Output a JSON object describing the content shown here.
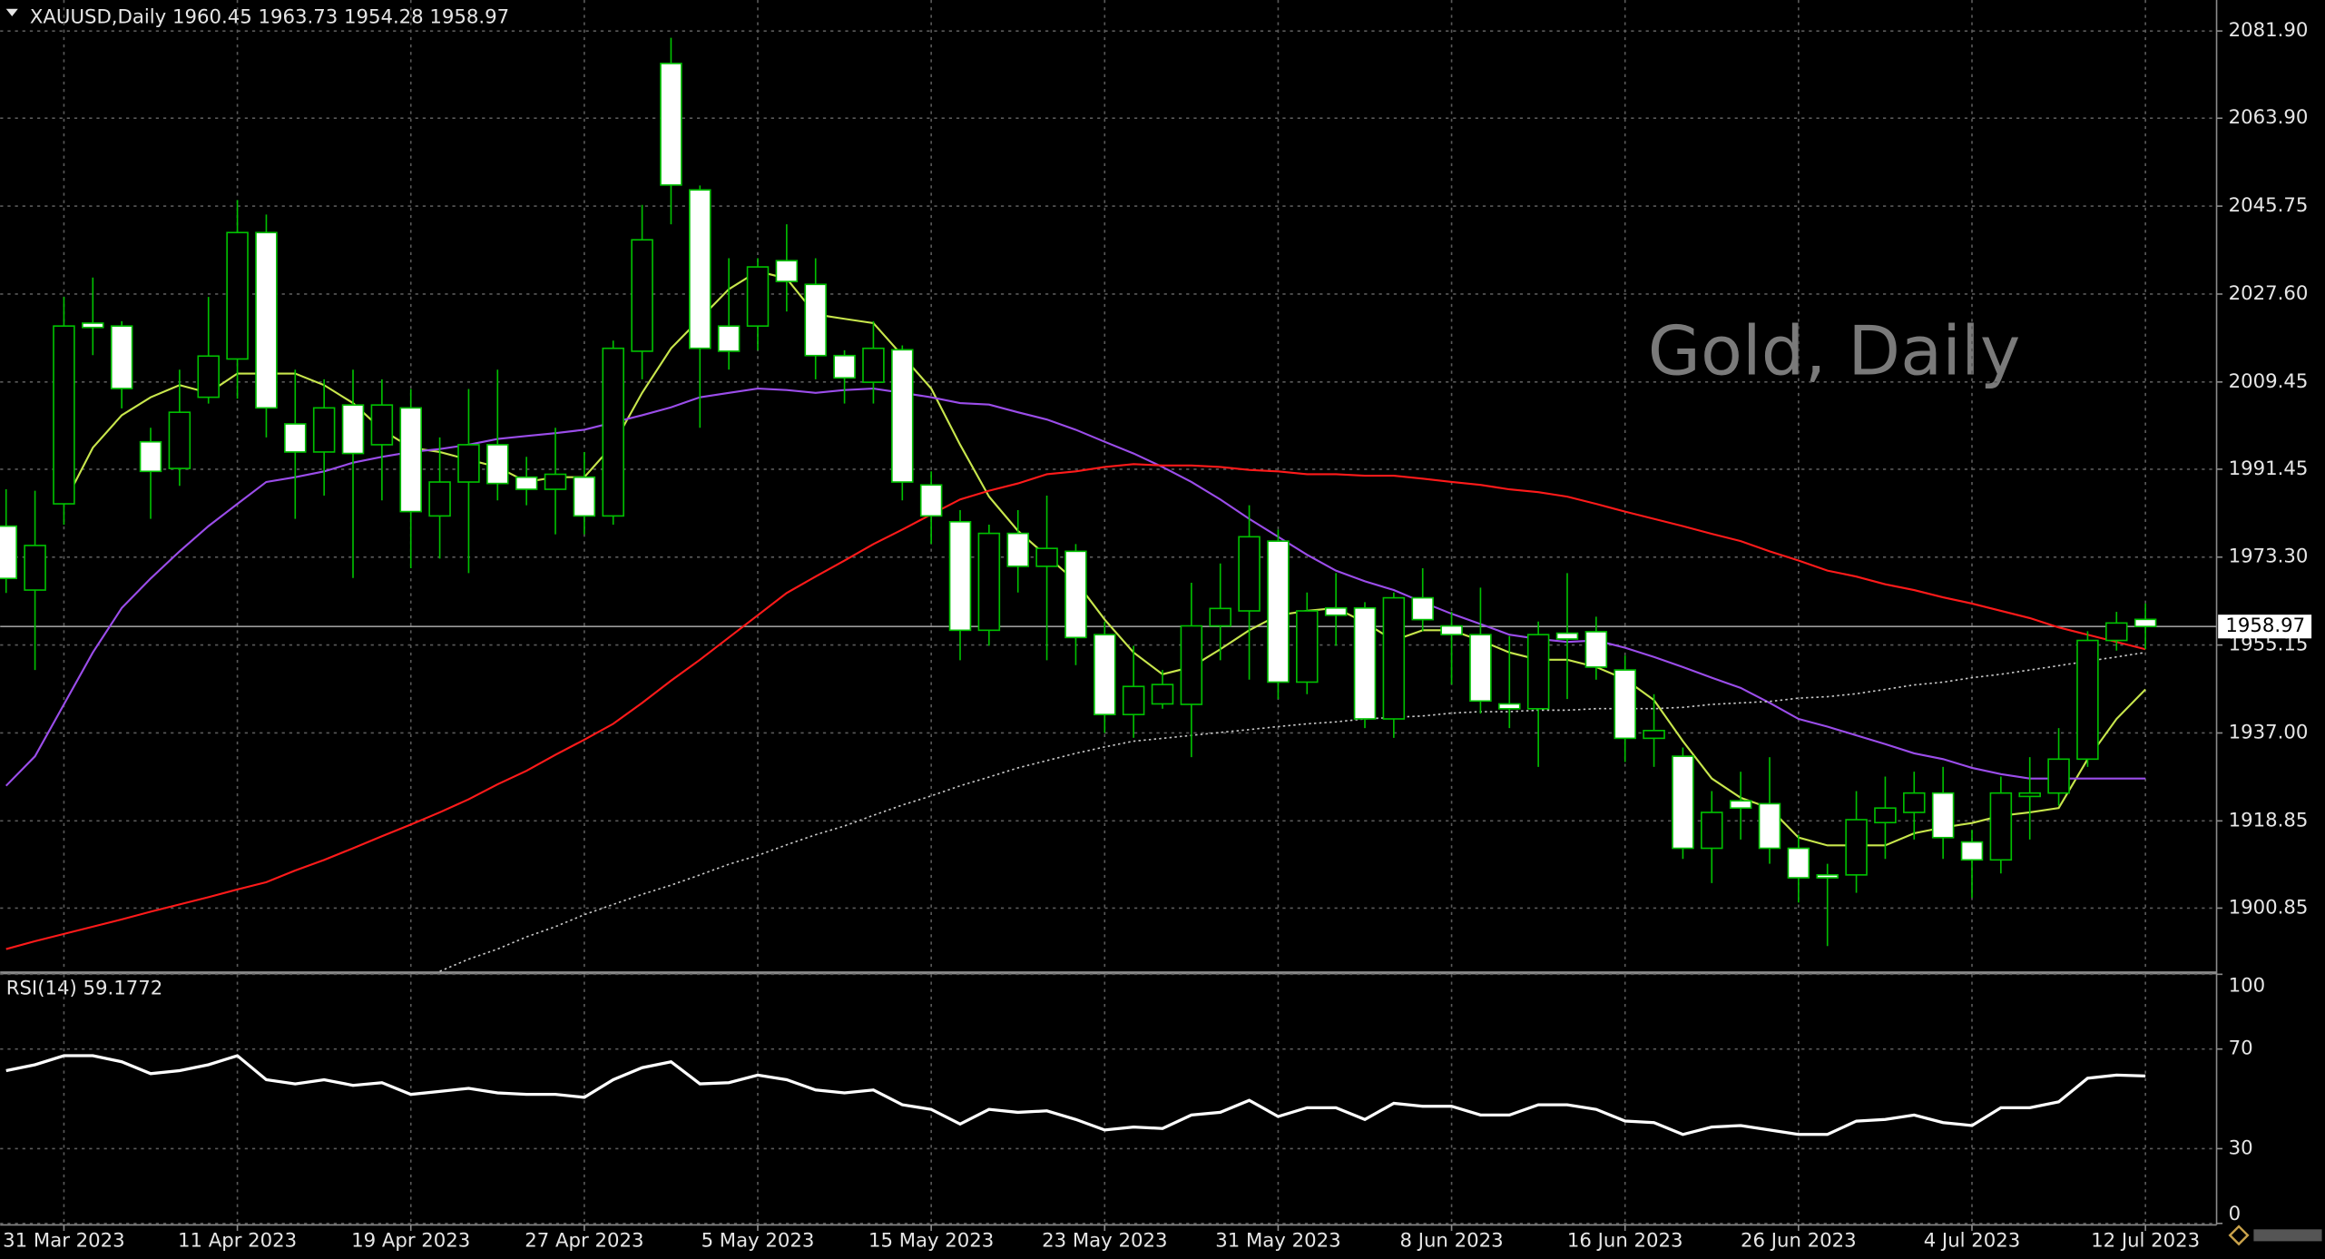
{
  "chart_data": [
    {
      "type": "candlestick",
      "title": "XAUUSD,Daily  1960.45 1963.73 1954.28 1958.97",
      "watermark": "Gold, Daily",
      "categories": [
        null,
        null,
        "31 Mar 2023",
        null,
        null,
        null,
        null,
        null,
        "11 Apr 2023",
        null,
        null,
        null,
        null,
        null,
        "19 Apr 2023",
        null,
        null,
        null,
        null,
        null,
        "27 Apr 2023",
        null,
        null,
        null,
        null,
        null,
        "5 May 2023",
        null,
        null,
        null,
        null,
        null,
        "15 May 2023",
        null,
        null,
        null,
        null,
        null,
        "23 May 2023",
        null,
        null,
        null,
        null,
        null,
        "31 May 2023",
        null,
        null,
        null,
        null,
        null,
        "8 Jun 2023",
        null,
        null,
        null,
        null,
        null,
        "16 Jun 2023",
        null,
        null,
        null,
        null,
        null,
        "26 Jun 2023",
        null,
        null,
        null,
        null,
        null,
        "4 Jul 2023",
        null,
        null,
        null,
        null,
        null,
        "12 Jul 2023"
      ],
      "open": [
        1979.7,
        1966.5,
        1984.3,
        2021.6,
        2021.0,
        1997.1,
        1991.6,
        2006.3,
        2014.2,
        2040.3,
        2000.8,
        1995.0,
        2004.7,
        1996.5,
        2004.1,
        1981.8,
        1988.8,
        1996.5,
        1989.8,
        1987.3,
        1989.8,
        1981.8,
        2015.8,
        2075.2,
        2049.1,
        2021.0,
        2021.0,
        2034.5,
        2029.6,
        2014.9,
        2009.4,
        2016.1,
        1988.2,
        1980.6,
        1958.2,
        1978.2,
        1971.4,
        1974.5,
        1957.3,
        1940.8,
        1943.0,
        1942.9,
        1959.1,
        1962.2,
        1976.6,
        1947.5,
        1962.8,
        1962.8,
        1939.9,
        1964.9,
        1959.1,
        1957.3,
        1943.0,
        1942.0,
        1957.6,
        1957.9,
        1950.0,
        1935.9,
        1932.2,
        1913.2,
        1923.0,
        1922.4,
        1913.2,
        1907.7,
        1907.7,
        1918.5,
        1920.6,
        1924.6,
        1914.5,
        1910.8,
        1923.9,
        1924.6,
        1931.6,
        1956.1,
        1960.45
      ],
      "high": [
        1987.3,
        1987,
        2027,
        2031,
        2022,
        2000,
        2012,
        2027,
        2047,
        2044,
        2012,
        2010,
        2012,
        2010,
        2008,
        1998,
        2008,
        2012,
        1994,
        2000,
        1995,
        2018,
        2046,
        2080.5,
        2050,
        2035,
        2035,
        2042,
        2035,
        2016,
        2022,
        2017,
        1991,
        1983,
        1980,
        1983,
        1986,
        1976,
        1960,
        1955,
        1950,
        1968,
        1972,
        1984,
        1979,
        1966,
        1970,
        1964,
        1966,
        1971,
        1962,
        1967,
        1957,
        1960,
        1970,
        1961,
        1953,
        1945,
        1934,
        1925,
        1929,
        1932,
        1916,
        1910,
        1925,
        1928,
        1929,
        1930,
        1917,
        1928,
        1932,
        1938,
        1958,
        1962,
        1963.73
      ],
      "low": [
        1965.9,
        1950,
        1980,
        2015,
        2004,
        1981.2,
        1988,
        2005,
        2006,
        1998,
        1981.2,
        1986,
        1969,
        1985,
        1971,
        1973,
        1970,
        1985,
        1984,
        1978,
        1978,
        1980,
        2010,
        2042,
        2000,
        2012,
        2016,
        2024,
        2010,
        2005,
        2005,
        1985,
        1976,
        1952,
        1955,
        1966,
        1952,
        1951,
        1937,
        1936,
        1942,
        1932,
        1952,
        1948,
        1944,
        1945,
        1955,
        1938,
        1936,
        1958,
        1947,
        1941,
        1938,
        1930,
        1944,
        1948,
        1931,
        1930,
        1911,
        1906,
        1915,
        1910,
        1902,
        1893,
        1904,
        1911,
        1915,
        1911,
        1903,
        1908,
        1915,
        1922,
        1930,
        1954,
        1954.28
      ],
      "close": [
        1968.9,
        1975.7,
        2021.0,
        2020.7,
        2008.1,
        1991.0,
        2003.2,
        2014.8,
        2040.3,
        2004.1,
        1995.0,
        2004.1,
        1994.7,
        2004.7,
        1982.7,
        1988.8,
        1996.5,
        1988.5,
        1987.3,
        1990.4,
        1981.8,
        2016.4,
        2038.8,
        2050.1,
        2016.4,
        2015.8,
        2033.2,
        2030.2,
        2014.9,
        2010.3,
        2016.4,
        1988.8,
        1981.8,
        1958.2,
        1978.2,
        1971.4,
        1975.1,
        1956.7,
        1940.8,
        1946.6,
        1947.0,
        1959.1,
        1962.7,
        1977.5,
        1947.5,
        1962.2,
        1961.3,
        1939.9,
        1964.9,
        1960.4,
        1957.3,
        1943.6,
        1942.0,
        1957.3,
        1956.4,
        1950.6,
        1935.9,
        1937.5,
        1913.2,
        1920.6,
        1921.5,
        1913.2,
        1907.1,
        1907.1,
        1919.1,
        1921.5,
        1924.6,
        1915.4,
        1910.8,
        1924.6,
        1924.6,
        1931.6,
        1956.1,
        1959.7,
        1958.97
      ],
      "up_color": "#000000",
      "down_color": "#ffffff",
      "wick_color": "#00c000",
      "overlays": [
        {
          "color": "#c8e64c",
          "style": "solid",
          "values": [
            null,
            null,
            1984.3,
            1995.9,
            2002.6,
            2006.3,
            2008.8,
            2007.2,
            2011.2,
            2011.2,
            2011.2,
            2008.8,
            2005.1,
            1999.6,
            1995.9,
            1995.0,
            1993.4,
            1991.9,
            1988.8,
            1989.8,
            1989.8,
            1996.5,
            2007.2,
            2016.4,
            2022.5,
            2028.6,
            2032.3,
            2030.8,
            2023.4,
            2022.5,
            2021.6,
            2014.9,
            2008.1,
            1996.5,
            1985.8,
            1978.7,
            1973.5,
            1968.3,
            1960.4,
            1953.6,
            1949.1,
            1950.6,
            1954.3,
            1958.2,
            1961.3,
            1962.2,
            1962.8,
            1959.8,
            1956.1,
            1958.2,
            1958.2,
            1956.1,
            1953.6,
            1952.1,
            1952.1,
            1950.6,
            1948.1,
            1943.8,
            1935.3,
            1927.6,
            1923.6,
            1921.5,
            1915.4,
            1913.8,
            1913.8,
            1913.8,
            1916.3,
            1917.5,
            1918.4,
            1919.9,
            1920.6,
            1921.5,
            1931.6,
            1939.9,
            1946.0
          ]
        },
        {
          "color": "#9b4dea",
          "style": "solid",
          "values": [
            1926.1,
            1932.2,
            1942.9,
            1953.6,
            1962.8,
            1968.9,
            1974.5,
            1979.7,
            1984.3,
            1988.8,
            1989.8,
            1991.0,
            1992.8,
            1994.0,
            1995.0,
            1995.6,
            1996.5,
            1997.7,
            1998.3,
            1998.9,
            1999.6,
            2001.1,
            2002.6,
            2004.2,
            2006.3,
            2007.2,
            2008.1,
            2007.8,
            2007.2,
            2007.8,
            2008.1,
            2007.2,
            2006.3,
            2005.1,
            2004.8,
            2003.2,
            2001.7,
            1999.6,
            1997.1,
            1994.7,
            1991.9,
            1988.8,
            1985.2,
            1981.2,
            1977.5,
            1973.8,
            1970.5,
            1968.3,
            1966.5,
            1964.0,
            1961.6,
            1959.5,
            1957.3,
            1956.4,
            1955.8,
            1956.1,
            1954.6,
            1952.7,
            1950.6,
            1948.4,
            1946.3,
            1943.2,
            1939.9,
            1938.3,
            1936.5,
            1934.7,
            1932.8,
            1931.6,
            1929.8,
            1928.5,
            1927.6,
            1927.6,
            1927.6,
            1927.6,
            1927.6
          ]
        },
        {
          "color": "#ff1a1a",
          "style": "solid",
          "values": [
            1892.4,
            1894.0,
            1895.5,
            1897.0,
            1898.5,
            1900.1,
            1901.6,
            1903.1,
            1904.7,
            1906.2,
            1908.6,
            1910.8,
            1913.2,
            1915.7,
            1918.1,
            1920.6,
            1923.3,
            1926.4,
            1929.2,
            1932.5,
            1935.6,
            1938.9,
            1943.2,
            1947.8,
            1952.1,
            1956.7,
            1961.3,
            1965.9,
            1969.3,
            1972.6,
            1976.0,
            1979.0,
            1982.1,
            1985.2,
            1987.0,
            1988.5,
            1990.4,
            1991.0,
            1991.9,
            1992.5,
            1992.2,
            1992.2,
            1991.9,
            1991.3,
            1991.0,
            1990.4,
            1990.4,
            1990.1,
            1990.1,
            1989.5,
            1988.8,
            1988.2,
            1987.3,
            1986.7,
            1985.8,
            1984.3,
            1982.7,
            1981.2,
            1979.7,
            1978.1,
            1976.6,
            1974.5,
            1972.6,
            1970.5,
            1969.3,
            1967.7,
            1966.5,
            1965.0,
            1963.7,
            1962.2,
            1960.7,
            1958.8,
            1957.3,
            1955.8,
            1954.3
          ]
        },
        {
          "color": "#c8c8c8",
          "style": "dotted",
          "values": [
            null,
            null,
            null,
            null,
            null,
            null,
            null,
            null,
            null,
            null,
            null,
            null,
            null,
            null,
            null,
            1887.8,
            1890.3,
            1892.4,
            1894.9,
            1897.0,
            1899.5,
            1901.6,
            1903.7,
            1905.6,
            1907.7,
            1909.9,
            1911.7,
            1913.9,
            1916.0,
            1917.8,
            1920.0,
            1922.1,
            1924.0,
            1926.1,
            1927.9,
            1929.8,
            1931.3,
            1932.8,
            1934.1,
            1935.3,
            1935.9,
            1936.5,
            1937.1,
            1937.7,
            1938.3,
            1938.9,
            1939.3,
            1939.9,
            1940.2,
            1940.5,
            1941.1,
            1941.4,
            1941.4,
            1941.7,
            1941.7,
            1942.0,
            1942.0,
            1942.0,
            1942.3,
            1942.9,
            1943.2,
            1943.5,
            1944.2,
            1944.5,
            1945.1,
            1946.0,
            1946.9,
            1947.5,
            1948.4,
            1949.1,
            1950.0,
            1950.9,
            1951.8,
            1952.7,
            1953.6
          ]
        }
      ],
      "last_price": 1958.97,
      "ylim": [
        1887.8,
        2088.3
      ],
      "yticks": [
        {
          "value": 2081.9,
          "label": "2081.90"
        },
        {
          "value": 2063.9,
          "label": "2063.90"
        },
        2045.75,
        {
          "value": 2027.6,
          "label": "2027.60"
        },
        2009.45,
        1991.45,
        {
          "value": 1973.3,
          "label": "1973.30"
        },
        1955.15,
        {
          "value": 1937,
          "label": "1937.00"
        },
        1918.85,
        1900.85
      ],
      "grid": true
    },
    {
      "type": "line",
      "title": "RSI(14) 59.1772",
      "color": "#ffffff",
      "values": [
        61.3,
        63.7,
        67.3,
        67.3,
        64.9,
        60.1,
        61.3,
        63.7,
        67.3,
        57.7,
        56.0,
        57.7,
        55.4,
        56.5,
        51.8,
        53.0,
        54.2,
        52.4,
        51.8,
        51.8,
        50.6,
        57.7,
        62.5,
        64.9,
        56.0,
        56.5,
        59.5,
        57.7,
        53.6,
        52.4,
        53.6,
        47.6,
        45.8,
        39.9,
        45.8,
        44.6,
        45.2,
        41.7,
        37.5,
        38.7,
        38.1,
        43.5,
        44.6,
        49.4,
        42.9,
        46.4,
        46.4,
        41.7,
        48.2,
        47.0,
        47.0,
        43.5,
        43.5,
        47.6,
        47.6,
        45.8,
        41.1,
        40.5,
        35.7,
        38.7,
        39.3,
        37.5,
        35.7,
        35.7,
        41.1,
        41.7,
        43.5,
        40.5,
        39.3,
        46.4,
        46.4,
        48.8,
        58.3,
        59.5,
        59.1772
      ],
      "ylim": [
        0,
        100
      ],
      "yticks": [
        100,
        70,
        30,
        0
      ],
      "grid": true
    }
  ]
}
